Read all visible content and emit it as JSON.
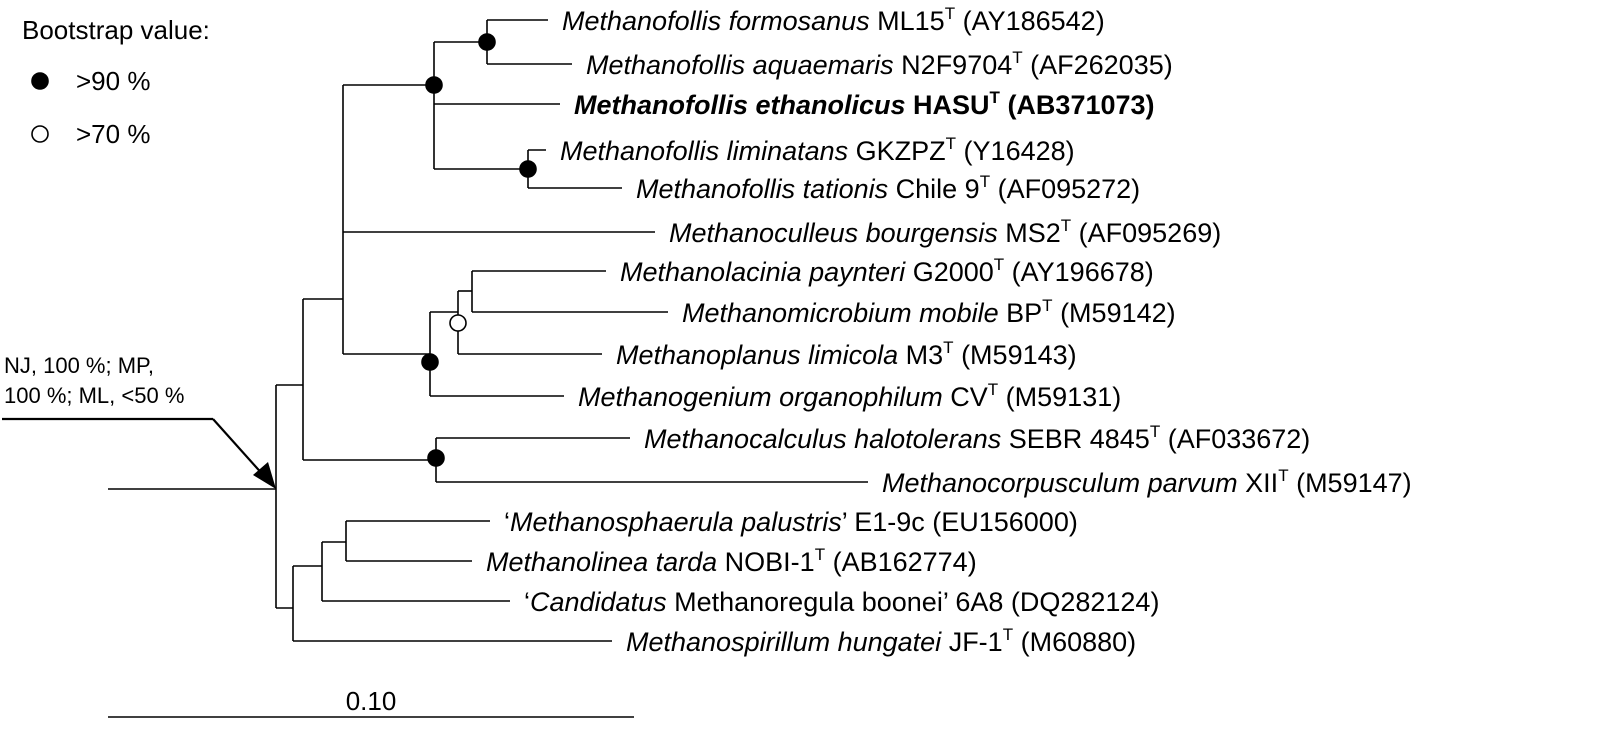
{
  "legend": {
    "title": "Bootstrap value:",
    "filled_label": ">90 %",
    "open_label": ">70 %"
  },
  "annotation": {
    "line1": "NJ, 100 %; MP,",
    "line2": "100 %; ML, <50 %"
  },
  "scale_label": "0.10",
  "taxa": [
    {
      "italic": "Methanofollis formosanus",
      "plain": " ML15",
      "sup": "T",
      "acc": " (AY186542)"
    },
    {
      "italic": "Methanofollis aquaemaris",
      "plain": " N2F9704",
      "sup": "T",
      "acc": " (AF262035)"
    },
    {
      "italic": "Methanofollis ethanolicus",
      "plain": " HASU",
      "sup": "T",
      "acc": " (AB371073)",
      "bold": true
    },
    {
      "italic": "Methanofollis liminatans",
      "plain": " GKZPZ",
      "sup": "T",
      "acc": " (Y16428)"
    },
    {
      "italic": "Methanofollis tationis",
      "plain": " Chile 9",
      "sup": "T",
      "acc": " (AF095272)"
    },
    {
      "italic": "Methanoculleus bourgensis",
      "plain": " MS2",
      "sup": "T",
      "acc": " (AF095269)"
    },
    {
      "italic": "Methanolacinia paynteri",
      "plain": " G2000",
      "sup": "T",
      "acc": " (AY196678)"
    },
    {
      "italic": "Methanomicrobium mobile",
      "plain": " BP",
      "sup": "T",
      "acc": " (M59142)"
    },
    {
      "italic": "Methanoplanus limicola",
      "plain": " M3",
      "sup": "T",
      "acc": " (M59143)"
    },
    {
      "italic": "Methanogenium organophilum",
      "plain": " CV",
      "sup": "T",
      "acc": " (M59131)"
    },
    {
      "italic": "Methanocalculus halotolerans",
      "plain": " SEBR 4845",
      "sup": "T",
      "acc": " (AF033672)"
    },
    {
      "italic": "Methanocorpusculum parvum",
      "plain": " XII",
      "sup": "T",
      "acc": " (M59147)"
    },
    {
      "pre": "‘",
      "italic": "Methanosphaerula palustris",
      "plain": "’  E1-9c",
      "sup": "",
      "acc": " (EU156000)"
    },
    {
      "italic": "Methanolinea tarda",
      "plain": " NOBI-1",
      "sup": "T",
      "acc": " (AB162774)"
    },
    {
      "pre": "‘",
      "italic": "Candidatus",
      "plain": " Methanoregula boonei’ 6A8",
      "sup": "",
      "acc": " (DQ282124)"
    },
    {
      "italic": "Methanospirillum hungatei",
      "plain": " JF-1",
      "sup": "T",
      "acc": " (M60880)"
    }
  ]
}
